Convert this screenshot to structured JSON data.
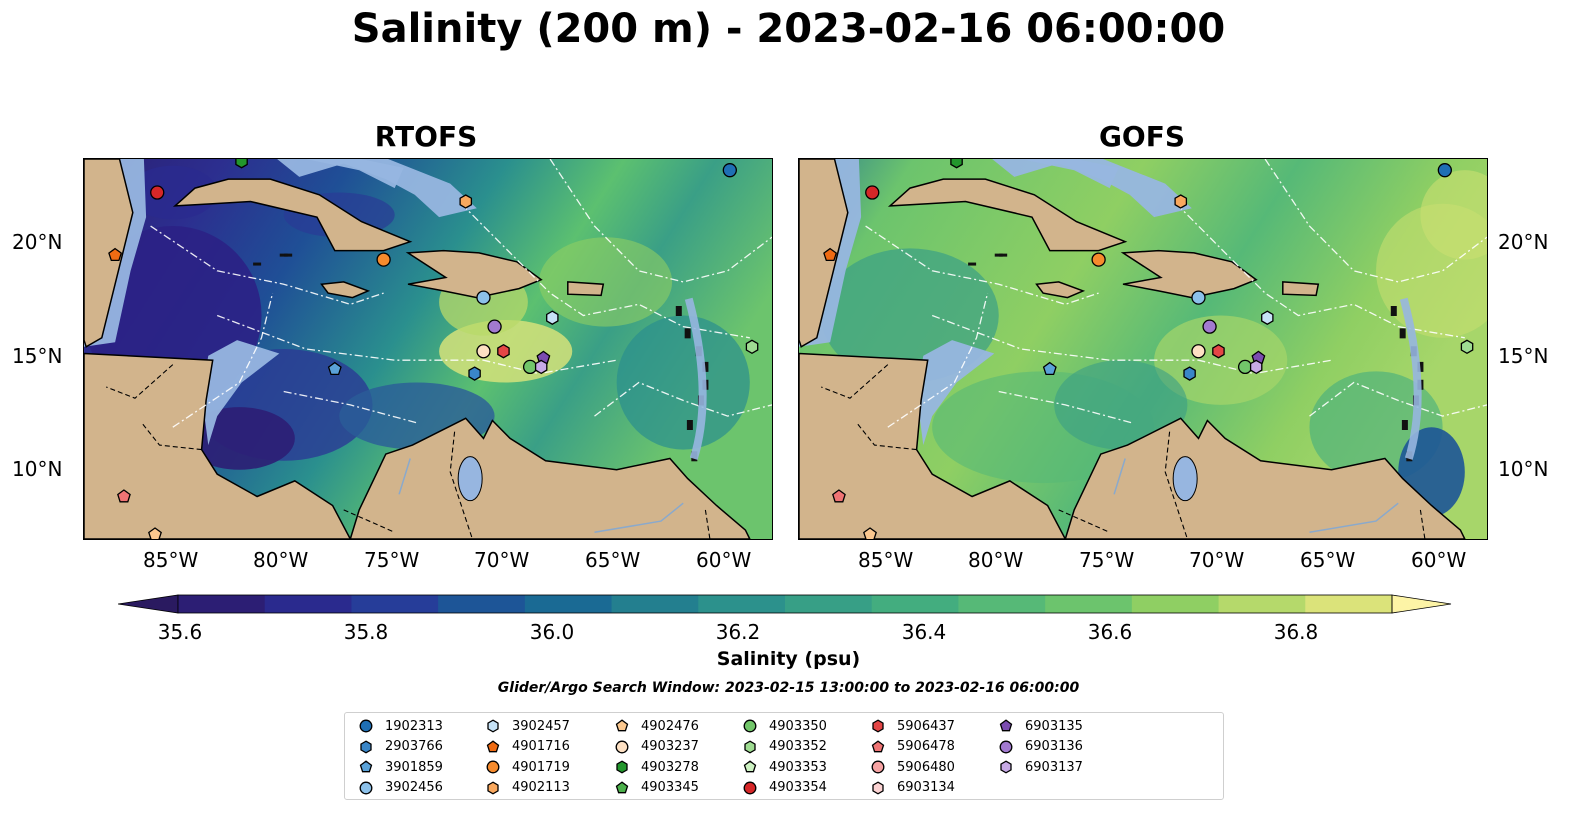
{
  "title": "Salinity (200 m) - 2023-02-16 06:00:00",
  "panels": [
    {
      "title": "RTOFS"
    },
    {
      "title": "GOFS"
    }
  ],
  "axes": {
    "lon_labels": [
      "85°W",
      "80°W",
      "75°W",
      "70°W",
      "65°W",
      "60°W"
    ],
    "lat_labels": [
      "20°N",
      "15°N",
      "10°N"
    ]
  },
  "colorbar": {
    "label": "Salinity (psu)",
    "ticks": [
      "35.6",
      "35.8",
      "36.0",
      "36.2",
      "36.4",
      "36.6",
      "36.8"
    ],
    "colors": [
      "#2c1e74",
      "#2a2a8e",
      "#263d99",
      "#1d5597",
      "#1a6a94",
      "#237f8f",
      "#2c918c",
      "#379f86",
      "#43ad7f",
      "#56b977",
      "#6cc46d",
      "#8fcf63",
      "#b5d96b",
      "#dbe37a"
    ],
    "extend_low": "#2a1a60",
    "extend_high": "#fdf4a6"
  },
  "search_window": "Glider/Argo Search Window: 2023-02-15 13:00:00 to 2023-02-16 06:00:00",
  "legend": [
    {
      "id": "1902313",
      "marker": "circle",
      "color": "#1f6fb4"
    },
    {
      "id": "2903766",
      "marker": "hexagon",
      "color": "#3a86c8"
    },
    {
      "id": "3901859",
      "marker": "pentagon",
      "color": "#5aa2d8"
    },
    {
      "id": "3902456",
      "marker": "circle",
      "color": "#8cc1ea"
    },
    {
      "id": "3902457",
      "marker": "hexagon",
      "color": "#c6e2f6"
    },
    {
      "id": "4901716",
      "marker": "pentagon",
      "color": "#ef6b13"
    },
    {
      "id": "4901719",
      "marker": "circle",
      "color": "#f68b2d"
    },
    {
      "id": "4902113",
      "marker": "hexagon",
      "color": "#f9a85e"
    },
    {
      "id": "4902476",
      "marker": "pentagon",
      "color": "#fbc88f"
    },
    {
      "id": "4903237",
      "marker": "circle",
      "color": "#fde0c3"
    },
    {
      "id": "4903278",
      "marker": "hexagon",
      "color": "#22962c"
    },
    {
      "id": "4903345",
      "marker": "pentagon",
      "color": "#4cb04b"
    },
    {
      "id": "4903350",
      "marker": "circle",
      "color": "#72c66a"
    },
    {
      "id": "4903352",
      "marker": "hexagon",
      "color": "#9fdc92"
    },
    {
      "id": "4903353",
      "marker": "pentagon",
      "color": "#cdf2c2"
    },
    {
      "id": "4903354",
      "marker": "circle",
      "color": "#d62728"
    },
    {
      "id": "5906437",
      "marker": "hexagon",
      "color": "#e44646"
    },
    {
      "id": "5906478",
      "marker": "pentagon",
      "color": "#ef7474"
    },
    {
      "id": "5906480",
      "marker": "circle",
      "color": "#f6a3a3"
    },
    {
      "id": "6903134",
      "marker": "hexagon",
      "color": "#fcd3d3"
    },
    {
      "id": "6903135",
      "marker": "pentagon",
      "color": "#7b4cb0"
    },
    {
      "id": "6903136",
      "marker": "circle",
      "color": "#a27ad0"
    },
    {
      "id": "6903137",
      "marker": "hexagon",
      "color": "#c7aae6"
    }
  ],
  "floats": [
    {
      "id": "1902313",
      "lon": -59.9,
      "lat": 23.5
    },
    {
      "id": "2903766",
      "lon": -71.4,
      "lat": 14.4
    },
    {
      "id": "3901859",
      "lon": -77.7,
      "lat": 14.6
    },
    {
      "id": "3902456",
      "lon": -71.0,
      "lat": 17.8
    },
    {
      "id": "3902457",
      "lon": -67.9,
      "lat": 16.9
    },
    {
      "id": "4901716",
      "lon": -87.6,
      "lat": 19.7
    },
    {
      "id": "4901719",
      "lon": -75.5,
      "lat": 19.5
    },
    {
      "id": "4902113",
      "lon": -71.8,
      "lat": 22.1
    },
    {
      "id": "4902476",
      "lon": -85.8,
      "lat": 7.2
    },
    {
      "id": "4903237",
      "lon": -71.0,
      "lat": 15.4
    },
    {
      "id": "4903278",
      "lon": -81.9,
      "lat": 23.9
    },
    {
      "id": "4903350",
      "lon": -68.9,
      "lat": 14.7
    },
    {
      "id": "4903352",
      "lon": -58.9,
      "lat": 15.6
    },
    {
      "id": "4903354",
      "lon": -85.7,
      "lat": 22.5
    },
    {
      "id": "5906437",
      "lon": -70.1,
      "lat": 15.4
    },
    {
      "id": "5906478",
      "lon": -87.2,
      "lat": 8.9
    },
    {
      "id": "6903135",
      "lon": -68.3,
      "lat": 15.1
    },
    {
      "id": "6903136",
      "lon": -70.5,
      "lat": 16.5
    },
    {
      "id": "6903137",
      "lon": -68.4,
      "lat": 14.7
    }
  ],
  "map_extent": {
    "lon": [
      -89.0,
      -58.0
    ],
    "lat": [
      7.0,
      24.0
    ]
  }
}
